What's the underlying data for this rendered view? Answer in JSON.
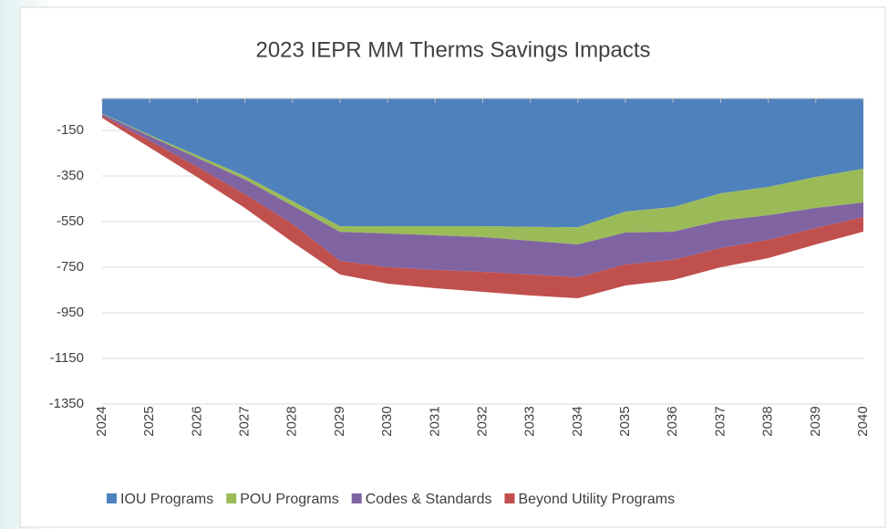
{
  "chart_data": {
    "type": "stacked_area",
    "title": "2023 IEPR MM Therms Savings Impacts",
    "categories": [
      "2024",
      "2025",
      "2026",
      "2027",
      "2028",
      "2029",
      "2030",
      "2031",
      "2032",
      "2033",
      "2034",
      "2035",
      "2036",
      "2037",
      "2038",
      "2039",
      "2040"
    ],
    "series": [
      {
        "name": "IOU Programs",
        "color": "#4f81bd",
        "values": [
          -75,
          -170,
          -260,
          -350,
          -460,
          -570,
          -570,
          -570,
          -570,
          -573,
          -575,
          -506,
          -486,
          -426,
          -398,
          -354,
          -318
        ]
      },
      {
        "name": "POU Programs",
        "color": "#9bbb59",
        "values": [
          -2,
          -5,
          -10,
          -15,
          -20,
          -25,
          -32,
          -40,
          -48,
          -61,
          -75,
          -92,
          -108,
          -120,
          -124,
          -136,
          -148
        ]
      },
      {
        "name": "Codes & Standards",
        "color": "#8064a2",
        "values": [
          -8,
          -20,
          -40,
          -65,
          -80,
          -127,
          -148,
          -152,
          -152,
          -148,
          -144,
          -140,
          -124,
          -120,
          -108,
          -88,
          -64
        ]
      },
      {
        "name": "Beyond Utility Programs",
        "color": "#c0504d",
        "values": [
          -10,
          -30,
          -45,
          -60,
          -80,
          -60,
          -72,
          -80,
          -88,
          -92,
          -92,
          -92,
          -88,
          -84,
          -80,
          -72,
          -64
        ]
      }
    ],
    "ylim": [
      -1350,
      -10
    ],
    "yticks": [
      -150,
      -350,
      -550,
      -750,
      -950,
      -1150,
      -1350
    ],
    "grid": true,
    "legend": "bottom"
  }
}
